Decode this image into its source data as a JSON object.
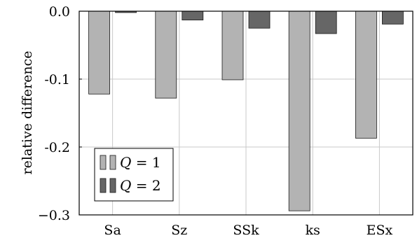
{
  "chart_data": {
    "type": "bar",
    "categories": [
      "Sa",
      "Sz",
      "SSk",
      "ks",
      "ESx"
    ],
    "series": [
      {
        "name": "Q = 1",
        "name_symbol": "Q",
        "name_rest": " = 1",
        "color": "#b3b3b3",
        "values": [
          -0.122,
          -0.128,
          -0.101,
          -0.294,
          -0.187
        ]
      },
      {
        "name": "Q = 2",
        "name_symbol": "Q",
        "name_rest": " = 2",
        "color": "#666666",
        "values": [
          -0.002,
          -0.013,
          -0.025,
          -0.033,
          -0.019
        ]
      }
    ],
    "title": "",
    "xlabel": "",
    "ylabel": "relative difference",
    "ylim": [
      -0.3,
      0.0
    ],
    "yticks": [
      0.0,
      -0.1,
      -0.2,
      -0.3
    ],
    "ytick_labels": [
      "0.0",
      "-0.1",
      "-0.2",
      "−0.3"
    ],
    "grid": true,
    "legend_position": "bottom-left"
  }
}
